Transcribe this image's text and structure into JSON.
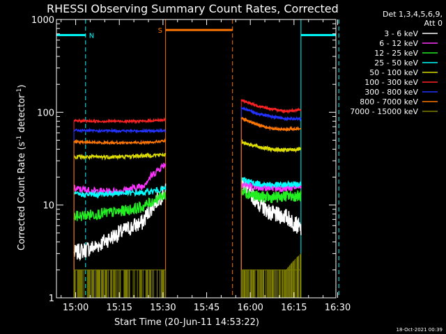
{
  "chart_data": {
    "type": "line",
    "title": "RHESSI Observing Summary Count Rates, Corrected",
    "xlabel": "Start Time (20-Jun-11 14:53:22)",
    "ylabel_main": "Corrected Count Rate (s",
    "ylabel_sup1": "-1",
    "ylabel_mid": " detector",
    "ylabel_sup2": "-1",
    "ylabel_end": ")",
    "yscale": "log",
    "ylim": [
      1,
      1000
    ],
    "xlim_min": [
      0,
      96
    ],
    "yticks": [
      {
        "value": 1,
        "label": "1"
      },
      {
        "value": 10,
        "label": "10"
      },
      {
        "value": 100,
        "label": "100"
      },
      {
        "value": 1000,
        "label": "1000"
      }
    ],
    "xticks": [
      {
        "value": 6.6,
        "label": "15:00"
      },
      {
        "value": 21.6,
        "label": "15:15"
      },
      {
        "value": 36.6,
        "label": "15:30"
      },
      {
        "value": 51.6,
        "label": "15:45"
      },
      {
        "value": 66.6,
        "label": "16:00"
      },
      {
        "value": 81.6,
        "label": "16:15"
      },
      {
        "value": 96.6,
        "label": "16:30"
      }
    ],
    "legend_header": [
      "Det 1,3,4,5,6,9,",
      "Att 0"
    ],
    "intervals": [
      [
        6,
        37.5
      ],
      [
        63.5,
        84
      ]
    ],
    "series": [
      {
        "name": "3 - 6 keV",
        "color": "#ffffff",
        "seg1": [
          3.0,
          3.6,
          5.0,
          6.5,
          14.0
        ],
        "seg2": [
          18.0,
          11.0,
          8.0,
          7.5,
          5.5
        ],
        "noise": 0.09
      },
      {
        "name": "6 - 12 keV",
        "color": "#ff33ff",
        "seg1": [
          15.0,
          14.0,
          14.0,
          16.0,
          28.0
        ],
        "seg2": [
          17.0,
          15.5,
          15.5,
          15.0,
          16.0
        ],
        "noise": 0.04
      },
      {
        "name": "12 - 25 keV",
        "color": "#22ee22",
        "seg1": [
          7.5,
          8.0,
          8.5,
          9.5,
          13.0
        ],
        "seg2": [
          14.0,
          12.5,
          12.0,
          12.5,
          12.5
        ],
        "noise": 0.06
      },
      {
        "name": "25 - 50 keV",
        "color": "#00ffff",
        "seg1": [
          13.0,
          13.0,
          13.5,
          13.5,
          15.0
        ],
        "seg2": [
          19.0,
          17.0,
          16.5,
          16.5,
          17.0
        ],
        "noise": 0.03
      },
      {
        "name": "50 - 100 keV",
        "color": "#dddd00",
        "seg1": [
          33.0,
          33.0,
          33.0,
          34.0,
          35.0
        ],
        "seg2": [
          48.0,
          43.0,
          40.0,
          39.0,
          40.0
        ],
        "noise": 0.02
      },
      {
        "name": "100 - 300 keV",
        "color": "#ff2222",
        "seg1": [
          81.0,
          80.0,
          80.0,
          80.0,
          83.0
        ],
        "seg2": [
          135.0,
          118.0,
          108.0,
          103.0,
          106.0
        ],
        "noise": 0.012
      },
      {
        "name": "300 - 800 keV",
        "color": "#2233ff",
        "seg1": [
          64.0,
          63.0,
          63.0,
          63.0,
          63.0
        ],
        "seg2": [
          113.0,
          97.0,
          90.0,
          85.0,
          85.0
        ],
        "noise": 0.012
      },
      {
        "name": "800 - 7000 keV",
        "color": "#ff7700",
        "seg1": [
          48.0,
          47.0,
          47.0,
          47.0,
          49.0
        ],
        "seg2": [
          86.0,
          74.0,
          67.0,
          65.0,
          67.0
        ],
        "noise": 0.012
      },
      {
        "name": "7000 - 15000 keV",
        "color": "#808000",
        "seg1": [
          2.0,
          2.0,
          2.0,
          2.0,
          2.0
        ],
        "seg2": [
          2.0,
          2.0,
          2.0,
          2.0,
          3.0
        ],
        "noise": 0
      },
      {
        "name": "N",
        "color": "#00ffff",
        "kind": "eclipse-flag"
      },
      {
        "name": "S",
        "color": "#ff7700",
        "kind": "saa-flag"
      }
    ],
    "flags": {
      "night_label": "N",
      "night_color": "#00ffff",
      "night_lines": [
        0,
        10,
        84,
        97
      ],
      "night_bars": [
        [
          0,
          10
        ],
        [
          84,
          96
        ]
      ],
      "night_level": 680,
      "saa_label": "S",
      "saa_color": "#ff7700",
      "saa_lines": [
        37.5,
        60.5
      ],
      "saa_bars": [
        [
          37.5,
          60.5
        ]
      ],
      "saa_level": 770
    },
    "footer_timestamp": "18-Oct-2021 00:39"
  }
}
